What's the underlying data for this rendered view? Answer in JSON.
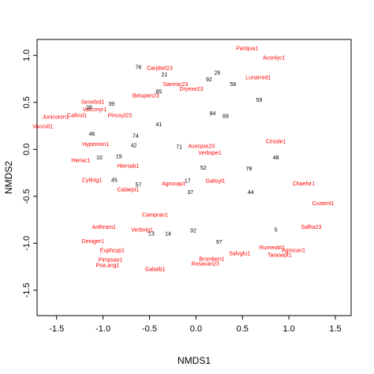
{
  "chart_data": {
    "type": "scatter",
    "xlabel": "NMDS1",
    "ylabel": "NMDS2",
    "xlim": [
      -1.71,
      1.67
    ],
    "ylim": [
      -1.77,
      1.17
    ],
    "xticks": [
      -1.5,
      {
        "value": -1,
        "label": "-1.0"
      },
      -0.5,
      {
        "value": 0,
        "label": "0.0"
      },
      0.5,
      {
        "value": 1,
        "label": "1.0"
      },
      1.5
    ],
    "yticks": [
      -1.5,
      {
        "value": -1,
        "label": "-1.0"
      },
      -0.5,
      {
        "value": 0,
        "label": "0.0"
      },
      0.5,
      {
        "value": 1,
        "label": "1.0"
      }
    ],
    "series": [
      {
        "color": "#ff0000",
        "labels": [
          "Pariqua1",
          "Aconlyc1",
          "Carpbet23",
          "Lunarred1",
          "Samrac23",
          "Betupen23",
          "Senebol1",
          "Vaccmyr1",
          "Juniconm1",
          "Callvul1",
          "Vaccvit1",
          "Pinusyl23",
          "Dryexe23",
          "Hypemon1",
          "Hierac1",
          "Hiersab1",
          "Cytlnig1",
          "Calaepi1",
          "Agrocap1",
          "Verbspe1",
          "Acerpse23",
          "Cirsole1",
          "Chaehir1",
          "Salfra23",
          "Custent1",
          "Geniger1",
          "Verbnig1",
          "Euphcyp1",
          "Pimpsax1",
          "Poa.ang1",
          "Galialb1",
          "Bromben1",
          "Rosacan23",
          "Salvglu1",
          "Tarasept1",
          "Rumeobt1",
          "Agrocan1",
          "Campran1",
          "Anthram1",
          "Galisyl1"
        ],
        "x": [
          0.55,
          0.84,
          -0.39,
          0.67,
          -0.22,
          -0.54,
          -1.11,
          -1.09,
          -1.51,
          -1.28,
          -1.65,
          -0.82,
          -0.05,
          -1.08,
          -1.24,
          -0.73,
          -1.12,
          -0.73,
          -0.24,
          0.15,
          0.06,
          0.86,
          1.16,
          1.24,
          1.37,
          -1.11,
          -0.58,
          -0.9,
          -0.92,
          -0.95,
          -0.44,
          0.17,
          0.1,
          0.47,
          0.9,
          0.82,
          1.05,
          -0.44,
          -0.99,
          0.21
        ],
        "values": [
          1.07,
          0.97,
          0.86,
          0.76,
          0.69,
          0.57,
          0.5,
          0.42,
          0.34,
          0.36,
          0.24,
          0.36,
          0.64,
          0.05,
          -0.12,
          -0.18,
          -0.33,
          -0.43,
          -0.37,
          -0.04,
          0.03,
          0.08,
          -0.37,
          -0.83,
          -0.58,
          -0.98,
          -0.86,
          -1.08,
          -1.18,
          -1.24,
          -1.28,
          -1.17,
          -1.22,
          -1.11,
          -1.13,
          -1.05,
          -1.08,
          -0.7,
          -0.83,
          -0.34
        ]
      },
      {
        "color": "#000000",
        "labels": [
          "76",
          "26",
          "21",
          "92",
          "56",
          "85",
          "38",
          "39",
          "59",
          "84",
          "69",
          "41",
          "46",
          "74",
          "42",
          "71",
          "52",
          "78",
          "48",
          "19",
          "10",
          "57",
          "17",
          "45",
          "37",
          "44",
          "14",
          "13",
          "32",
          "97",
          "5"
        ],
        "x": [
          -0.62,
          0.23,
          -0.34,
          0.14,
          0.4,
          -0.4,
          -1.15,
          -0.91,
          0.68,
          0.18,
          0.32,
          -0.4,
          -1.12,
          -0.65,
          -0.67,
          -0.18,
          0.08,
          0.57,
          0.86,
          -0.83,
          -1.04,
          -0.62,
          -0.09,
          -0.88,
          -0.06,
          0.59,
          -0.3,
          -0.48,
          -0.03,
          0.25,
          0.86
        ],
        "values": [
          0.87,
          0.81,
          0.79,
          0.74,
          0.69,
          0.61,
          0.44,
          0.48,
          0.52,
          0.38,
          0.35,
          0.26,
          0.16,
          0.14,
          0.04,
          0.02,
          -0.2,
          -0.21,
          -0.09,
          -0.08,
          -0.09,
          -0.38,
          -0.34,
          -0.33,
          -0.46,
          -0.46,
          -0.9,
          -0.9,
          -0.87,
          -0.99,
          -0.86
        ]
      }
    ]
  }
}
